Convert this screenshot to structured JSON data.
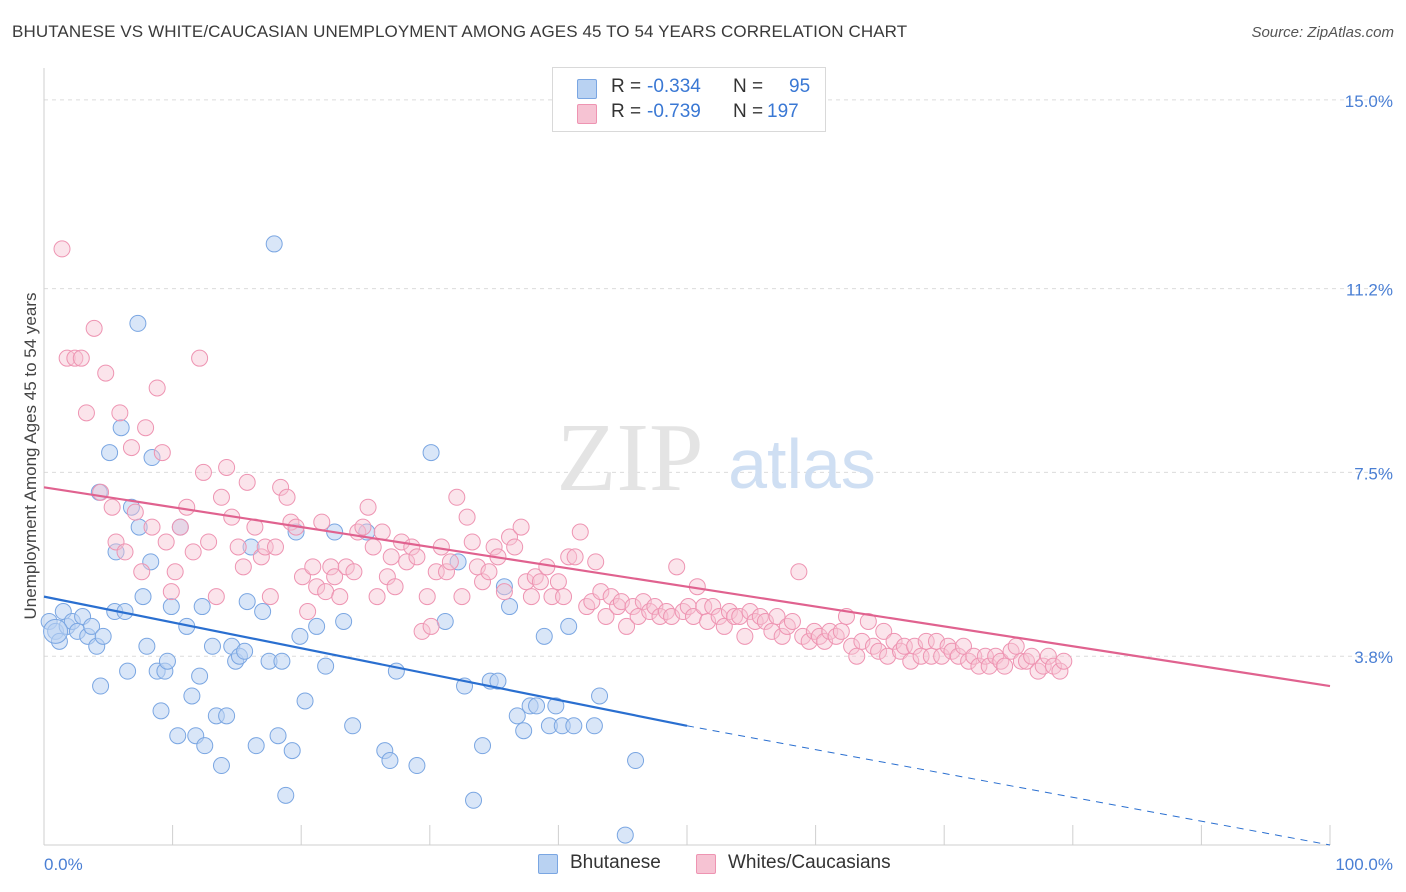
{
  "title": "BHUTANESE VS WHITE/CAUCASIAN UNEMPLOYMENT AMONG AGES 45 TO 54 YEARS CORRELATION CHART",
  "source": "Source: ZipAtlas.com",
  "watermark": {
    "zip": "ZIP",
    "atlas": "atlas"
  },
  "colors": {
    "blue_fill": "#b9d2f2",
    "blue_stroke": "#7aa6e2",
    "blue_line": "#2a6fd0",
    "pink_fill": "#f6c3d3",
    "pink_stroke": "#ee94b2",
    "pink_line": "#e0628f",
    "tick_text": "#4a7fd4",
    "grid": "#dcdcdc"
  },
  "legend": [
    {
      "r_label": "R =",
      "r_value": "-0.334",
      "n_label": "N =",
      "n_value": "95"
    },
    {
      "r_label": "R =",
      "r_value": "-0.739",
      "n_label": "N =",
      "n_value": "197"
    }
  ],
  "chart_data": {
    "type": "scatter",
    "title": "BHUTANESE VS WHITE/CAUCASIAN UNEMPLOYMENT AMONG AGES 45 TO 54 YEARS CORRELATION CHART",
    "xlabel": "",
    "ylabel": "Unemployment Among Ages 45 to 54 years",
    "xlim": [
      0,
      100
    ],
    "ylim": [
      0,
      15.4
    ],
    "x_tick_labels": [
      {
        "value": 0,
        "label": "0.0%"
      },
      {
        "value": 100,
        "label": "100.0%"
      }
    ],
    "y_tick_labels": [
      {
        "value": 15.0,
        "label": "15.0%"
      },
      {
        "value": 11.2,
        "label": "11.2%"
      },
      {
        "value": 7.5,
        "label": "7.5%"
      },
      {
        "value": 3.8,
        "label": "3.8%"
      }
    ],
    "series": [
      {
        "name": "Bhutanese",
        "trend": {
          "x0": 0,
          "y0": 5.0,
          "x1": 50,
          "y1": 2.4,
          "dash_to_x": 100,
          "dash_to_y": -0.2
        },
        "points": [
          [
            0.4,
            4.5
          ],
          [
            0.9,
            4.3
          ],
          [
            1.2,
            4.1
          ],
          [
            1.5,
            4.7
          ],
          [
            1.8,
            4.4
          ],
          [
            2.2,
            4.5
          ],
          [
            2.6,
            4.3
          ],
          [
            3.0,
            4.6
          ],
          [
            3.4,
            4.2
          ],
          [
            3.7,
            4.4
          ],
          [
            4.1,
            4.0
          ],
          [
            4.3,
            7.1
          ],
          [
            4.4,
            3.2
          ],
          [
            4.6,
            4.2
          ],
          [
            5.1,
            7.9
          ],
          [
            5.5,
            4.7
          ],
          [
            5.6,
            5.9
          ],
          [
            6.0,
            8.4
          ],
          [
            6.3,
            4.7
          ],
          [
            6.5,
            3.5
          ],
          [
            6.8,
            6.8
          ],
          [
            7.3,
            10.5
          ],
          [
            7.4,
            6.4
          ],
          [
            7.7,
            5.0
          ],
          [
            8.0,
            4.0
          ],
          [
            8.3,
            5.7
          ],
          [
            8.4,
            7.8
          ],
          [
            8.8,
            3.5
          ],
          [
            9.1,
            2.7
          ],
          [
            9.4,
            3.5
          ],
          [
            9.6,
            3.7
          ],
          [
            9.9,
            4.8
          ],
          [
            10.4,
            2.2
          ],
          [
            10.6,
            6.4
          ],
          [
            11.1,
            4.4
          ],
          [
            11.5,
            3.0
          ],
          [
            11.8,
            2.2
          ],
          [
            12.1,
            3.4
          ],
          [
            12.3,
            4.8
          ],
          [
            12.5,
            2.0
          ],
          [
            13.1,
            4.0
          ],
          [
            13.4,
            2.6
          ],
          [
            13.8,
            1.6
          ],
          [
            14.2,
            2.6
          ],
          [
            14.6,
            4.0
          ],
          [
            14.9,
            3.7
          ],
          [
            15.2,
            3.8
          ],
          [
            15.6,
            3.9
          ],
          [
            15.8,
            4.9
          ],
          [
            16.1,
            6.0
          ],
          [
            16.5,
            2.0
          ],
          [
            17.0,
            4.7
          ],
          [
            17.5,
            3.7
          ],
          [
            17.9,
            12.1
          ],
          [
            18.2,
            2.2
          ],
          [
            18.5,
            3.7
          ],
          [
            18.8,
            1.0
          ],
          [
            19.3,
            1.9
          ],
          [
            19.6,
            6.3
          ],
          [
            19.9,
            4.2
          ],
          [
            20.3,
            2.9
          ],
          [
            21.2,
            4.4
          ],
          [
            21.9,
            3.6
          ],
          [
            22.6,
            6.3
          ],
          [
            23.3,
            4.5
          ],
          [
            24.0,
            2.4
          ],
          [
            25.1,
            6.3
          ],
          [
            26.5,
            1.9
          ],
          [
            26.9,
            1.7
          ],
          [
            27.4,
            3.5
          ],
          [
            29.0,
            1.6
          ],
          [
            30.1,
            7.9
          ],
          [
            31.2,
            4.5
          ],
          [
            32.2,
            5.7
          ],
          [
            32.7,
            3.2
          ],
          [
            33.4,
            0.9
          ],
          [
            34.1,
            2.0
          ],
          [
            34.7,
            3.3
          ],
          [
            35.3,
            3.3
          ],
          [
            35.8,
            5.2
          ],
          [
            36.2,
            4.8
          ],
          [
            36.8,
            2.6
          ],
          [
            37.3,
            2.3
          ],
          [
            37.8,
            2.8
          ],
          [
            38.3,
            2.8
          ],
          [
            38.9,
            4.2
          ],
          [
            39.3,
            2.4
          ],
          [
            39.8,
            2.8
          ],
          [
            40.3,
            2.4
          ],
          [
            40.8,
            4.4
          ],
          [
            41.2,
            2.4
          ],
          [
            42.8,
            2.4
          ],
          [
            43.2,
            3.0
          ],
          [
            45.2,
            0.2
          ],
          [
            46.0,
            1.7
          ]
        ]
      },
      {
        "name": "Whites/Caucasians",
        "trend": {
          "x0": 0,
          "y0": 7.2,
          "x1": 100,
          "y1": 3.2
        },
        "points": [
          [
            1.4,
            12.0
          ],
          [
            1.8,
            9.8
          ],
          [
            2.4,
            9.8
          ],
          [
            2.9,
            9.8
          ],
          [
            3.3,
            8.7
          ],
          [
            3.9,
            10.4
          ],
          [
            4.4,
            7.1
          ],
          [
            4.8,
            9.5
          ],
          [
            5.3,
            6.8
          ],
          [
            5.6,
            6.1
          ],
          [
            5.9,
            8.7
          ],
          [
            6.3,
            5.9
          ],
          [
            6.8,
            8.0
          ],
          [
            7.1,
            6.7
          ],
          [
            7.6,
            5.5
          ],
          [
            7.9,
            8.4
          ],
          [
            8.4,
            6.4
          ],
          [
            8.8,
            9.2
          ],
          [
            9.2,
            7.9
          ],
          [
            9.5,
            6.1
          ],
          [
            9.9,
            5.1
          ],
          [
            10.2,
            5.5
          ],
          [
            10.6,
            6.4
          ],
          [
            11.1,
            6.8
          ],
          [
            11.6,
            5.9
          ],
          [
            12.1,
            9.8
          ],
          [
            12.4,
            7.5
          ],
          [
            12.8,
            6.1
          ],
          [
            13.4,
            5.0
          ],
          [
            13.8,
            7.0
          ],
          [
            14.2,
            7.6
          ],
          [
            14.6,
            6.6
          ],
          [
            15.1,
            6.0
          ],
          [
            15.5,
            5.6
          ],
          [
            15.8,
            7.3
          ],
          [
            16.4,
            6.4
          ],
          [
            16.9,
            5.8
          ],
          [
            17.2,
            6.0
          ],
          [
            17.6,
            5.0
          ],
          [
            18.0,
            6.0
          ],
          [
            18.4,
            7.2
          ],
          [
            18.9,
            7.0
          ],
          [
            19.2,
            6.5
          ],
          [
            19.6,
            6.4
          ],
          [
            20.1,
            5.4
          ],
          [
            20.5,
            4.7
          ],
          [
            20.9,
            5.6
          ],
          [
            21.2,
            5.2
          ],
          [
            21.6,
            6.5
          ],
          [
            21.9,
            5.1
          ],
          [
            22.3,
            5.6
          ],
          [
            22.6,
            5.4
          ],
          [
            23.0,
            5.0
          ],
          [
            23.5,
            5.6
          ],
          [
            24.1,
            5.5
          ],
          [
            24.4,
            6.3
          ],
          [
            24.8,
            6.4
          ],
          [
            25.2,
            6.8
          ],
          [
            25.6,
            6.0
          ],
          [
            25.9,
            5.0
          ],
          [
            26.3,
            6.3
          ],
          [
            26.7,
            5.4
          ],
          [
            27.0,
            5.8
          ],
          [
            27.3,
            5.2
          ],
          [
            27.8,
            6.1
          ],
          [
            28.2,
            5.7
          ],
          [
            28.6,
            6.0
          ],
          [
            29.0,
            5.8
          ],
          [
            29.4,
            4.3
          ],
          [
            29.8,
            5.0
          ],
          [
            30.1,
            4.4
          ],
          [
            30.5,
            5.5
          ],
          [
            30.9,
            6.0
          ],
          [
            31.3,
            5.5
          ],
          [
            31.6,
            5.7
          ],
          [
            32.1,
            7.0
          ],
          [
            32.5,
            5.0
          ],
          [
            32.9,
            6.6
          ],
          [
            33.3,
            6.1
          ],
          [
            33.7,
            5.6
          ],
          [
            34.1,
            5.3
          ],
          [
            34.6,
            5.5
          ],
          [
            35.0,
            6.0
          ],
          [
            35.3,
            5.8
          ],
          [
            35.8,
            5.1
          ],
          [
            36.2,
            6.2
          ],
          [
            36.6,
            6.0
          ],
          [
            37.1,
            6.4
          ],
          [
            37.5,
            5.3
          ],
          [
            37.9,
            5.0
          ],
          [
            38.2,
            5.4
          ],
          [
            38.6,
            5.3
          ],
          [
            39.1,
            5.6
          ],
          [
            39.5,
            5.0
          ],
          [
            40.0,
            5.3
          ],
          [
            40.4,
            5.0
          ],
          [
            40.8,
            5.8
          ],
          [
            41.3,
            5.8
          ],
          [
            41.7,
            6.3
          ],
          [
            42.2,
            4.8
          ],
          [
            42.6,
            4.9
          ],
          [
            42.9,
            5.7
          ],
          [
            43.3,
            5.1
          ],
          [
            43.7,
            4.6
          ],
          [
            44.1,
            5.0
          ],
          [
            44.6,
            4.8
          ],
          [
            44.9,
            4.9
          ],
          [
            45.3,
            4.4
          ],
          [
            45.8,
            4.8
          ],
          [
            46.2,
            4.6
          ],
          [
            46.6,
            4.9
          ],
          [
            47.1,
            4.7
          ],
          [
            47.5,
            4.8
          ],
          [
            47.9,
            4.6
          ],
          [
            48.4,
            4.7
          ],
          [
            48.8,
            4.6
          ],
          [
            49.2,
            5.6
          ],
          [
            49.7,
            4.7
          ],
          [
            50.1,
            4.8
          ],
          [
            50.5,
            4.6
          ],
          [
            50.8,
            5.2
          ],
          [
            51.3,
            4.8
          ],
          [
            51.6,
            4.5
          ],
          [
            52.0,
            4.8
          ],
          [
            52.5,
            4.6
          ],
          [
            52.9,
            4.4
          ],
          [
            53.3,
            4.7
          ],
          [
            53.7,
            4.6
          ],
          [
            54.1,
            4.6
          ],
          [
            54.5,
            4.2
          ],
          [
            54.9,
            4.7
          ],
          [
            55.3,
            4.5
          ],
          [
            55.7,
            4.6
          ],
          [
            56.1,
            4.5
          ],
          [
            56.6,
            4.3
          ],
          [
            57.0,
            4.6
          ],
          [
            57.4,
            4.2
          ],
          [
            57.8,
            4.4
          ],
          [
            58.2,
            4.5
          ],
          [
            58.7,
            5.5
          ],
          [
            59.0,
            4.2
          ],
          [
            59.5,
            4.1
          ],
          [
            59.9,
            4.3
          ],
          [
            60.3,
            4.2
          ],
          [
            60.7,
            4.1
          ],
          [
            61.1,
            4.3
          ],
          [
            61.6,
            4.2
          ],
          [
            62.0,
            4.3
          ],
          [
            62.4,
            4.6
          ],
          [
            62.8,
            4.0
          ],
          [
            63.2,
            3.8
          ],
          [
            63.6,
            4.1
          ],
          [
            64.1,
            4.5
          ],
          [
            64.5,
            4.0
          ],
          [
            64.9,
            3.9
          ],
          [
            65.3,
            4.3
          ],
          [
            65.6,
            3.8
          ],
          [
            66.1,
            4.1
          ],
          [
            66.6,
            3.9
          ],
          [
            66.9,
            4.0
          ],
          [
            67.4,
            3.7
          ],
          [
            67.7,
            4.0
          ],
          [
            68.2,
            3.8
          ],
          [
            68.6,
            4.1
          ],
          [
            69.0,
            3.8
          ],
          [
            69.4,
            4.1
          ],
          [
            69.8,
            3.8
          ],
          [
            70.3,
            4.0
          ],
          [
            70.6,
            3.9
          ],
          [
            71.1,
            3.8
          ],
          [
            71.5,
            4.0
          ],
          [
            71.9,
            3.7
          ],
          [
            72.3,
            3.8
          ],
          [
            72.7,
            3.6
          ],
          [
            73.2,
            3.8
          ],
          [
            73.5,
            3.6
          ],
          [
            74.0,
            3.8
          ],
          [
            74.4,
            3.7
          ],
          [
            74.7,
            3.6
          ],
          [
            75.2,
            3.9
          ],
          [
            75.6,
            4.0
          ],
          [
            76.0,
            3.7
          ],
          [
            76.4,
            3.7
          ],
          [
            76.8,
            3.8
          ],
          [
            77.3,
            3.5
          ],
          [
            77.7,
            3.6
          ],
          [
            78.1,
            3.8
          ],
          [
            78.5,
            3.6
          ],
          [
            79.0,
            3.5
          ],
          [
            79.3,
            3.7
          ]
        ]
      }
    ]
  },
  "bottom_legend": [
    {
      "label": "Bhutanese"
    },
    {
      "label": "Whites/Caucasians"
    }
  ]
}
